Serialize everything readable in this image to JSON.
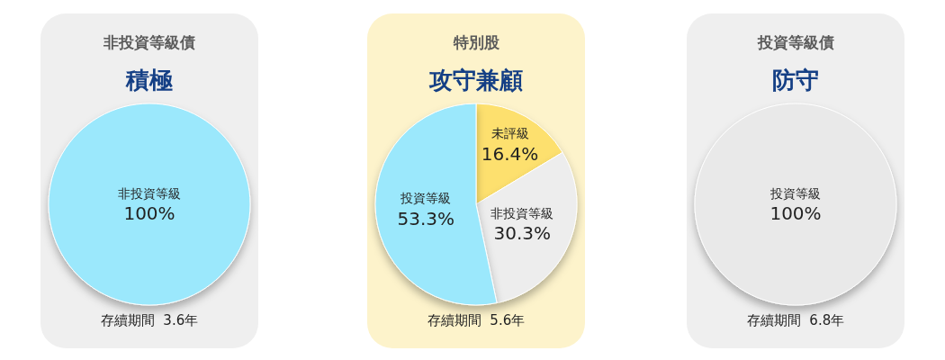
{
  "chart_data": [
    {
      "type": "pie",
      "title": "非投資等級債",
      "subtitle": "積極",
      "categories": [
        "非投資等級"
      ],
      "values": [
        100
      ],
      "value_labels": [
        "100%"
      ],
      "colors": [
        "#9be8fc"
      ],
      "annotations": [
        "存續期間  3.6年"
      ]
    },
    {
      "type": "pie",
      "title": "特別股",
      "subtitle": "攻守兼顧",
      "categories": [
        "未評級",
        "非投資等級",
        "投資等級"
      ],
      "values": [
        16.4,
        30.3,
        53.3
      ],
      "value_labels": [
        "16.4%",
        "30.3%",
        "53.3%"
      ],
      "colors": [
        "#fde06e",
        "#ededed",
        "#9be8fc"
      ],
      "annotations": [
        "存續期間  5.6年"
      ]
    },
    {
      "type": "pie",
      "title": "投資等級債",
      "subtitle": "防守",
      "categories": [
        "投資等級"
      ],
      "values": [
        100
      ],
      "value_labels": [
        "100%"
      ],
      "colors": [
        "#e9e9e9"
      ],
      "annotations": [
        "存續期間  6.8年"
      ]
    }
  ]
}
